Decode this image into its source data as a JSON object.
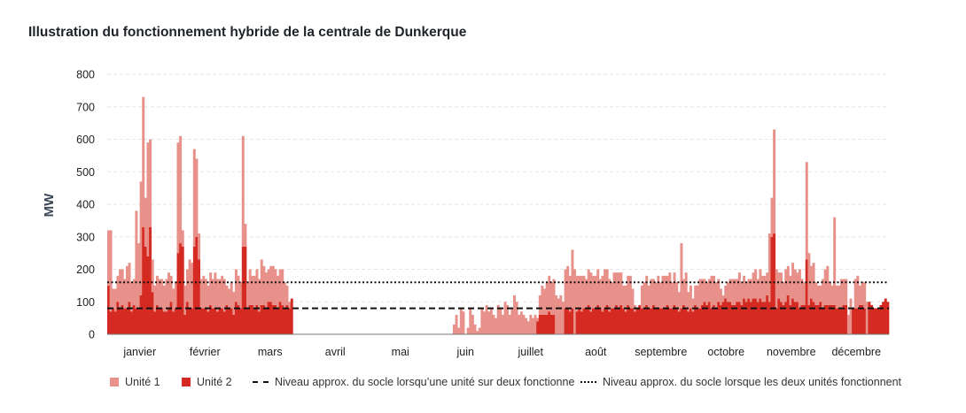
{
  "chart_data": {
    "type": "bar",
    "title": "Illustration du fonctionnement hybride de la centrale de Dunkerque",
    "ylabel": "MW",
    "ylim": [
      0,
      800
    ],
    "yticks": [
      0,
      100,
      200,
      300,
      400,
      500,
      600,
      700,
      800
    ],
    "grid": true,
    "stacked": true,
    "x_tick_labels": [
      "janvier",
      "février",
      "mars",
      "avril",
      "mai",
      "juin",
      "juillet",
      "août",
      "septembre",
      "octobre",
      "novembre",
      "décembre"
    ],
    "series": [
      {
        "name": "Unité 1",
        "color": "#e8918b",
        "values": [
          170,
          250,
          60,
          70,
          80,
          120,
          110,
          90,
          130,
          120,
          90,
          80,
          300,
          200,
          350,
          400,
          150,
          350,
          270,
          100,
          80,
          90,
          90,
          90,
          80,
          100,
          110,
          80,
          70,
          80,
          340,
          330,
          50,
          90,
          100,
          150,
          140,
          300,
          240,
          80,
          90,
          100,
          90,
          80,
          100,
          90,
          110,
          100,
          90,
          100,
          100,
          60,
          60,
          80,
          70,
          100,
          90,
          80,
          340,
          70,
          80,
          110,
          90,
          100,
          110,
          100,
          140,
          120,
          110,
          100,
          110,
          120,
          110,
          100,
          100,
          110,
          80,
          60,
          20,
          0,
          0,
          0,
          0,
          0,
          0,
          0,
          0,
          0,
          0,
          0,
          0,
          0,
          0,
          0,
          0,
          0,
          0,
          0,
          0,
          0,
          0,
          0,
          0,
          0,
          0,
          0,
          0,
          0,
          0,
          0,
          0,
          0,
          0,
          0,
          0,
          0,
          0,
          0,
          0,
          0,
          0,
          0,
          0,
          0,
          0,
          0,
          0,
          0,
          0,
          0,
          0,
          0,
          0,
          0,
          0,
          0,
          0,
          0,
          0,
          0,
          0,
          0,
          0,
          0,
          0,
          0,
          0,
          0,
          0,
          30,
          60,
          20,
          80,
          70,
          0,
          20,
          80,
          60,
          30,
          10,
          20,
          80,
          70,
          90,
          70,
          80,
          60,
          50,
          90,
          80,
          60,
          100,
          90,
          60,
          80,
          120,
          100,
          60,
          70,
          60,
          50,
          40,
          60,
          50,
          60,
          10,
          60,
          90,
          80,
          100,
          110,
          100,
          110,
          120,
          110,
          120,
          100,
          120,
          130,
          110,
          180,
          200,
          110,
          100,
          110,
          100,
          90,
          110,
          120,
          100,
          100,
          110,
          90,
          110,
          120,
          110,
          100,
          80,
          110,
          100,
          110,
          100,
          70,
          80,
          90,
          100,
          60,
          20,
          0,
          0,
          70,
          80,
          90,
          70,
          90,
          80,
          80,
          100,
          80,
          100,
          100,
          90,
          110,
          80,
          100,
          80,
          60,
          200,
          80,
          110,
          60,
          70,
          40,
          60,
          70,
          90,
          80,
          70,
          70,
          70,
          100,
          90,
          80,
          70,
          50,
          20,
          40,
          60,
          70,
          80,
          80,
          70,
          90,
          70,
          70,
          60,
          60,
          70,
          80,
          90,
          70,
          90,
          80,
          80,
          70,
          210,
          120,
          320,
          120,
          80,
          90,
          70,
          100,
          90,
          90,
          110,
          100,
          90,
          120,
          80,
          70,
          300,
          160,
          100,
          120,
          70,
          60,
          50,
          90,
          110,
          120,
          70,
          60,
          270,
          70,
          70,
          90,
          80,
          80,
          60,
          110,
          0,
          90,
          100,
          60,
          70,
          80,
          100,
          0,
          0,
          0
        ]
      },
      {
        "name": "Unité 2",
        "color": "#d42a22",
        "values": [
          150,
          70,
          80,
          70,
          100,
          80,
          90,
          80,
          80,
          100,
          70,
          90,
          80,
          80,
          120,
          330,
          270,
          240,
          330,
          130,
          70,
          90,
          80,
          80,
          70,
          70,
          80,
          100,
          70,
          80,
          250,
          280,
          270,
          60,
          100,
          80,
          80,
          270,
          300,
          230,
          80,
          80,
          80,
          70,
          90,
          80,
          80,
          70,
          80,
          80,
          70,
          90,
          80,
          80,
          60,
          100,
          90,
          80,
          270,
          270,
          80,
          90,
          90,
          80,
          90,
          70,
          90,
          90,
          80,
          100,
          100,
          90,
          90,
          80,
          100,
          90,
          80,
          90,
          80,
          110,
          0,
          0,
          0,
          0,
          0,
          0,
          0,
          0,
          0,
          0,
          0,
          0,
          0,
          0,
          0,
          0,
          0,
          0,
          0,
          0,
          0,
          0,
          0,
          0,
          0,
          0,
          0,
          0,
          0,
          0,
          0,
          0,
          0,
          0,
          0,
          0,
          0,
          0,
          0,
          0,
          0,
          0,
          0,
          0,
          0,
          0,
          0,
          0,
          0,
          0,
          0,
          0,
          0,
          0,
          0,
          0,
          0,
          0,
          0,
          0,
          0,
          0,
          0,
          0,
          0,
          0,
          0,
          0,
          0,
          0,
          0,
          0,
          0,
          0,
          0,
          0,
          0,
          0,
          0,
          0,
          0,
          0,
          0,
          0,
          0,
          0,
          0,
          0,
          0,
          0,
          0,
          0,
          0,
          0,
          0,
          0,
          0,
          0,
          0,
          0,
          0,
          0,
          0,
          0,
          0,
          40,
          60,
          60,
          60,
          60,
          70,
          60,
          60,
          0,
          0,
          0,
          0,
          80,
          80,
          70,
          80,
          0,
          70,
          80,
          70,
          80,
          80,
          90,
          70,
          80,
          80,
          90,
          80,
          70,
          80,
          90,
          70,
          80,
          80,
          90,
          80,
          90,
          80,
          70,
          90,
          80,
          80,
          70,
          80,
          90,
          80,
          80,
          90,
          80,
          80,
          90,
          80,
          80,
          80,
          80,
          80,
          90,
          80,
          80,
          90,
          80,
          70,
          80,
          90,
          80,
          70,
          80,
          70,
          90,
          80,
          80,
          90,
          100,
          90,
          100,
          80,
          90,
          80,
          100,
          90,
          100,
          110,
          100,
          100,
          90,
          90,
          100,
          100,
          90,
          110,
          100,
          110,
          100,
          110,
          110,
          100,
          110,
          100,
          100,
          120,
          100,
          300,
          310,
          80,
          110,
          100,
          90,
          100,
          120,
          90,
          110,
          100,
          100,
          80,
          90,
          90,
          230,
          90,
          110,
          100,
          90,
          90,
          100,
          80,
          90,
          90,
          90,
          90,
          90,
          80,
          80,
          80,
          90,
          90,
          0,
          0,
          80,
          80,
          80,
          90,
          90,
          80,
          0,
          100,
          90,
          80,
          80,
          80,
          90,
          100,
          110,
          100
        ]
      }
    ],
    "reference_lines": [
      {
        "name": "Niveau approx. du socle lorsqu’une unité sur deux fonctionne",
        "value": 80,
        "style": "dashed",
        "color": "#111111"
      },
      {
        "name": "Niveau approx. du socle lorsque les deux unités fonctionnent",
        "value": 160,
        "style": "dotted",
        "color": "#111111"
      }
    ],
    "legend_position": "bottom"
  }
}
